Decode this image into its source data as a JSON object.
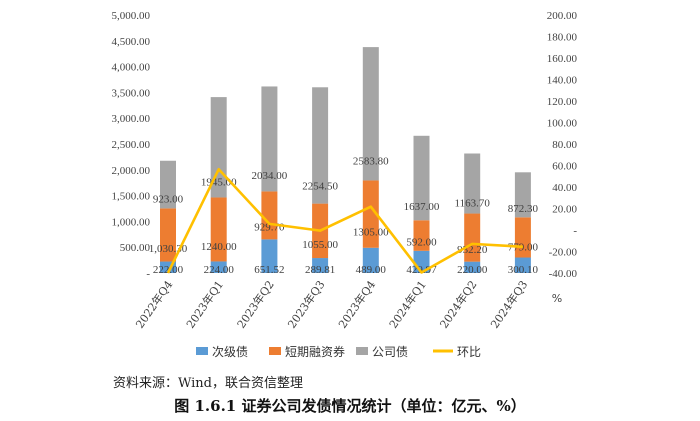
{
  "chart_data": {
    "type": "bar",
    "stacked": true,
    "categories": [
      "2022年Q4",
      "2023年Q1",
      "2023年Q2",
      "2023年Q3",
      "2023年Q4",
      "2024年Q1",
      "2024年Q2",
      "2024年Q3"
    ],
    "series": [
      {
        "name": "次级债",
        "kind": "bar",
        "color": "#5b9bd5",
        "values": [
          222.0,
          224.0,
          651.52,
          289.81,
          489.0,
          429.97,
          220.0,
          300.1
        ],
        "labels": [
          "222.00",
          "224.00",
          "651.52",
          "289.81",
          "489.00",
          "429.97",
          "220.00",
          "300.10"
        ]
      },
      {
        "name": "短期融资券",
        "kind": "bar",
        "color": "#ed7d31",
        "values": [
          1030.3,
          1240.0,
          929.7,
          1055.0,
          1305.0,
          592.0,
          932.2,
          779.0
        ],
        "labels": [
          "1,030.30",
          "1240.00",
          "929.70",
          "1055.00",
          "1305.00",
          "592.00",
          "932.20",
          "779.00"
        ]
      },
      {
        "name": "公司债",
        "kind": "bar",
        "color": "#a5a5a5",
        "values": [
          923.0,
          1945.0,
          2034.0,
          2254.5,
          2583.8,
          1637.0,
          1163.7,
          872.3
        ],
        "labels": [
          "923.00",
          "1945.00",
          "2034.00",
          "2254.50",
          "2583.80",
          "1637.00",
          "1163.70",
          "872.30"
        ]
      },
      {
        "name": "环比",
        "kind": "line",
        "axis": "right",
        "color": "#ffc000",
        "values": [
          -40.0,
          56.5,
          5.7,
          -0.6,
          21.7,
          -39.5,
          -12.9,
          -15.6
        ]
      }
    ],
    "y_left": {
      "range": [
        0,
        5000
      ],
      "ticks": [
        "-",
        "500.00",
        "1,000.00",
        "1,500.00",
        "2,000.00",
        "2,500.00",
        "3,000.00",
        "3,500.00",
        "4,000.00",
        "4,500.00",
        "5,000.00"
      ]
    },
    "y_right": {
      "range": [
        -40,
        200
      ],
      "unit": "%",
      "ticks": [
        "-40.00",
        "-20.00",
        "-",
        "20.00",
        "40.00",
        "60.00",
        "80.00",
        "100.00",
        "120.00",
        "140.00",
        "160.00",
        "180.00",
        "200.00"
      ]
    },
    "legend_position": "bottom",
    "grid": false
  },
  "source_note": "资料来源：Wind，联合资信整理",
  "caption": "图 1.6.1   证券公司发债情况统计（单位：亿元、%）"
}
